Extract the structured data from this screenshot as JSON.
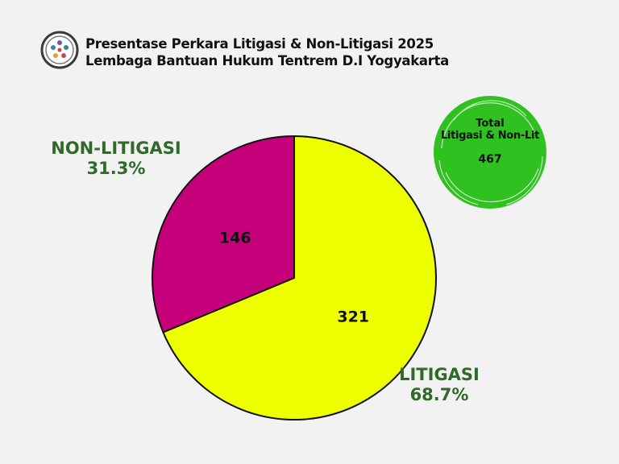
{
  "header": {
    "title_line1": "Presentase Perkara Litigasi & Non-Litigasi 2025",
    "title_line2": "Lembaga Bantuan Hukum Tentrem D.I Yogyakarta",
    "logo_icon": "organization-logo-icon"
  },
  "total_badge": {
    "label_line1": "Total",
    "label_line2": "Litigasi & Non-Lit",
    "value": "467",
    "color": "#2ec11f"
  },
  "chart_data": {
    "type": "pie",
    "total": 467,
    "slices": [
      {
        "name": "LITIGASI",
        "value": 321,
        "percent_label": "68.7%",
        "color": "#eeff00"
      },
      {
        "name": "NON-LITIGASI",
        "value": 146,
        "percent_label": "31.3%",
        "color": "#c5007a"
      }
    ],
    "label_color": "#2f6a2a",
    "start_angle": "12 o'clock",
    "direction": "clockwise"
  }
}
